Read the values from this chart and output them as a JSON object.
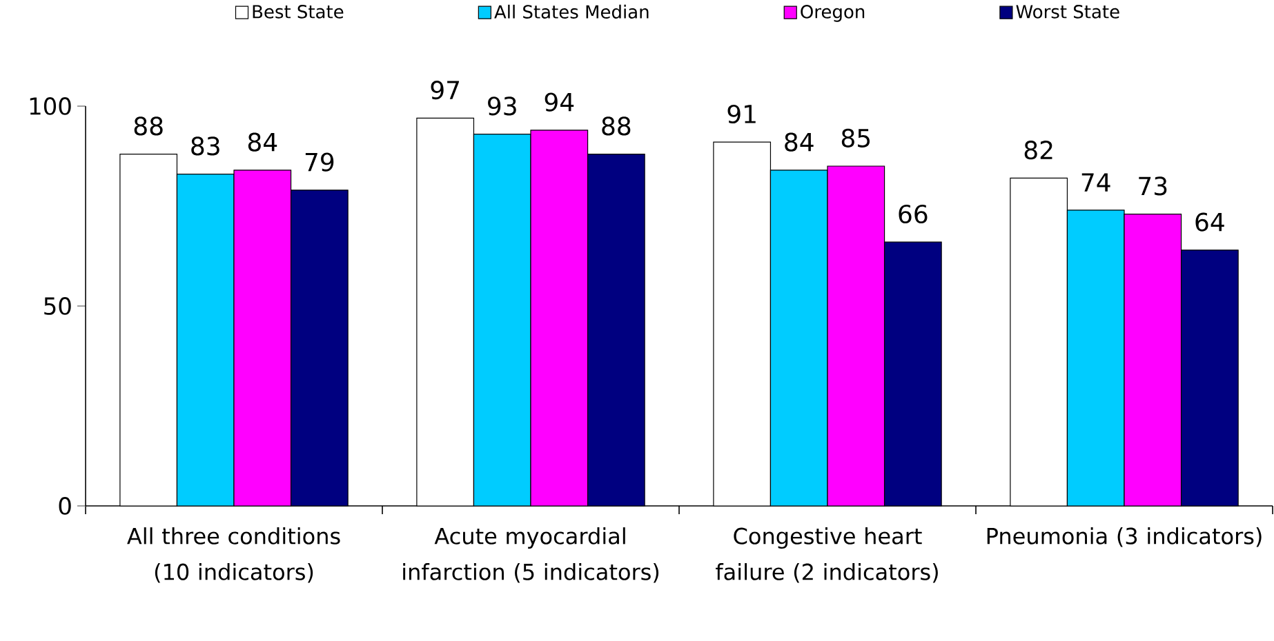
{
  "chart_data": {
    "type": "bar",
    "categories": [
      "All three conditions (10 indicators)",
      "Acute myocardial infarction (5 indicators)",
      "Congestive heart failure (2 indicators)",
      "Pneumonia (3 indicators)"
    ],
    "series": [
      {
        "name": "Best State",
        "color": "#ffffff",
        "values": [
          88,
          97,
          91,
          82
        ]
      },
      {
        "name": "All States Median",
        "color": "#00ccff",
        "values": [
          83,
          93,
          84,
          74
        ]
      },
      {
        "name": "Oregon",
        "color": "#ff00ff",
        "values": [
          84,
          94,
          85,
          73
        ]
      },
      {
        "name": "Worst State",
        "color": "#000080",
        "values": [
          79,
          88,
          66,
          64
        ]
      }
    ],
    "ylim": [
      0,
      100
    ],
    "yticks": [
      0,
      50,
      100
    ],
    "data_labels": true,
    "legend": "top",
    "grid": false
  }
}
